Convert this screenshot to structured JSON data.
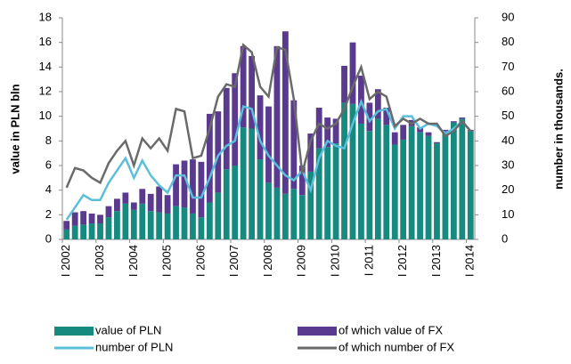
{
  "chart_data": {
    "type": "bar",
    "y_label": "value in PLN bln",
    "y2_label": "number in thousands.",
    "categories": [
      "I 2002",
      null,
      null,
      null,
      "I 2003",
      null,
      null,
      null,
      "I 2004",
      null,
      null,
      null,
      "I 2005",
      null,
      null,
      null,
      "I 2006",
      null,
      null,
      null,
      "I 2007",
      null,
      null,
      null,
      "I 2008",
      null,
      null,
      null,
      "I 2009",
      null,
      null,
      null,
      "I 2010",
      null,
      null,
      null,
      "I 2011",
      null,
      null,
      null,
      "I 2012",
      null,
      null,
      null,
      "I 2013",
      null,
      null,
      null,
      "I 2014"
    ],
    "ylim": [
      0,
      18
    ],
    "yticks": [
      0,
      2,
      4,
      6,
      8,
      10,
      12,
      14,
      16,
      18
    ],
    "y2lim": [
      0,
      90
    ],
    "y2ticks": [
      0,
      10,
      20,
      30,
      40,
      50,
      60,
      70,
      80,
      90
    ],
    "series": [
      {
        "name": "value of PLN",
        "type": "bar",
        "color": "#178a80",
        "values": [
          0.8,
          1.1,
          1.2,
          1.3,
          1.3,
          1.8,
          2.3,
          2.9,
          2.4,
          2.9,
          2.3,
          2.2,
          2.1,
          2.7,
          2.6,
          2.1,
          1.8,
          3.0,
          3.8,
          5.7,
          6.0,
          9.1,
          9.0,
          6.5,
          4.6,
          4.2,
          3.7,
          4.1,
          3.6,
          5.5,
          7.4,
          7.5,
          7.8,
          11.1,
          11.0,
          9.4,
          8.8,
          9.8,
          9.3,
          7.7,
          8.1,
          9.2,
          8.7,
          8.4,
          7.8,
          8.8,
          9.5,
          9.8,
          8.8
        ]
      },
      {
        "name": "of which value of FX",
        "type": "bar",
        "color": "#5a3a8e",
        "values": [
          0.7,
          1.1,
          1.1,
          0.8,
          0.7,
          0.9,
          1.0,
          0.9,
          0.6,
          1.2,
          1.4,
          2.1,
          1.5,
          3.4,
          3.8,
          4.4,
          4.5,
          7.2,
          6.6,
          6.6,
          7.5,
          6.6,
          5.9,
          5.2,
          6.2,
          11.5,
          13.2,
          7.2,
          2.4,
          3.1,
          3.3,
          2.4,
          2.0,
          3.0,
          5.0,
          3.9,
          2.3,
          2.4,
          1.4,
          1.0,
          1.2,
          0.5,
          0.4,
          0.3,
          0.1,
          0.1,
          0.1,
          0.1,
          0.1
        ]
      },
      {
        "name": "number of PLN",
        "type": "line",
        "axis": "y2",
        "color": "#5bbfdc",
        "values": [
          8,
          13,
          18,
          16,
          16,
          23,
          28,
          33,
          25,
          32,
          26,
          22,
          19,
          26,
          26,
          17,
          17,
          25,
          34,
          38,
          40,
          54,
          53,
          40,
          34,
          30,
          26,
          24,
          28,
          20,
          33,
          40,
          38,
          37,
          47,
          56,
          48,
          52,
          53,
          45,
          50,
          50,
          45,
          47,
          46,
          43,
          45,
          48,
          44
        ]
      },
      {
        "name": "of which number of FX",
        "type": "line",
        "axis": "y2",
        "color": "#6a6a6a",
        "values": [
          21,
          29,
          28,
          25,
          23,
          31,
          36,
          40,
          30,
          41,
          37,
          41,
          36,
          53,
          52,
          33,
          34,
          45,
          58,
          63,
          62,
          79,
          76,
          62,
          58,
          78,
          77,
          57,
          27,
          40,
          47,
          45,
          47,
          53,
          62,
          70,
          57,
          60,
          58,
          46,
          49,
          47,
          49,
          47,
          47,
          42,
          44,
          48,
          44
        ]
      }
    ]
  }
}
